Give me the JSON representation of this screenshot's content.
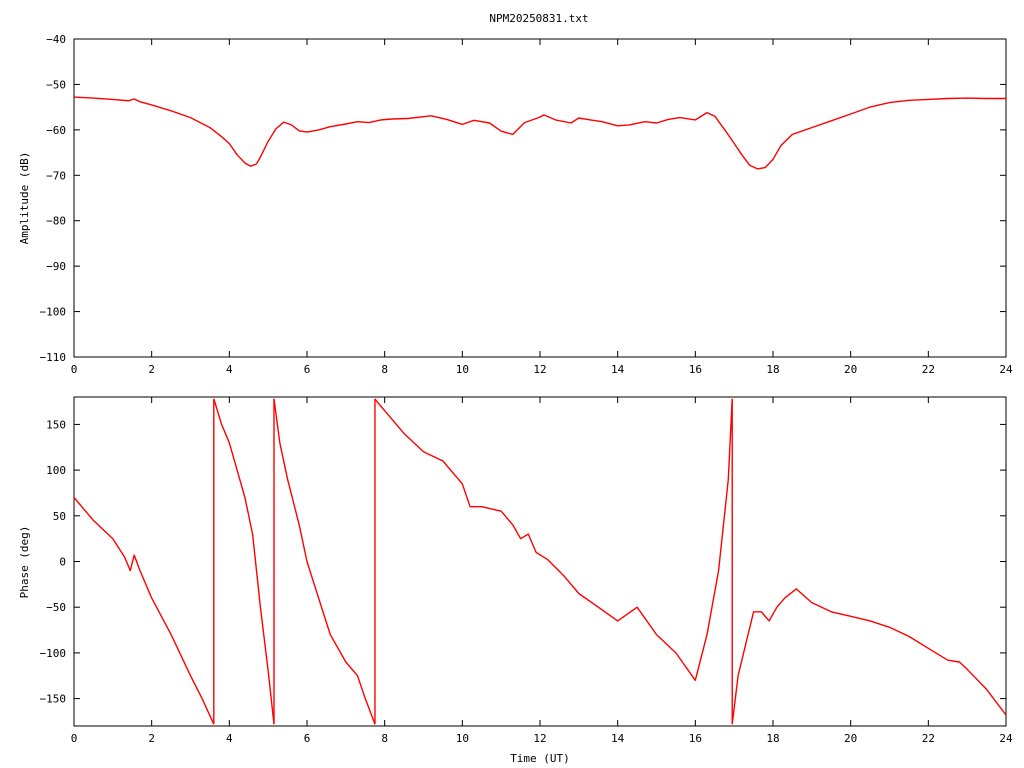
{
  "title": "NPM20250831.txt",
  "colors": {
    "series": "#ff0000",
    "axes": "#000000",
    "background": "#ffffff"
  },
  "chart_data": [
    {
      "type": "line",
      "title": "NPM20250831.txt",
      "xlabel": "",
      "ylabel": "Amplitude (dB)",
      "xlim": [
        0,
        24
      ],
      "ylim": [
        -110,
        -40
      ],
      "xticks": [
        0,
        2,
        4,
        6,
        8,
        10,
        12,
        14,
        16,
        18,
        20,
        22,
        24
      ],
      "yticks": [
        -110,
        -100,
        -90,
        -80,
        -70,
        -60,
        -50,
        -40
      ],
      "grid": false,
      "legend": "none",
      "series": [
        {
          "color": "#ff0000",
          "x": [
            0,
            0.5,
            1.0,
            1.4,
            1.55,
            1.7,
            2.0,
            2.5,
            3.0,
            3.5,
            3.8,
            4.0,
            4.2,
            4.4,
            4.55,
            4.7,
            4.8,
            5.0,
            5.2,
            5.4,
            5.6,
            5.8,
            6.0,
            6.3,
            6.6,
            7.0,
            7.3,
            7.6,
            7.9,
            8.2,
            8.6,
            9.0,
            9.2,
            9.6,
            10.0,
            10.3,
            10.7,
            11.0,
            11.3,
            11.6,
            12.0,
            12.1,
            12.4,
            12.8,
            13.0,
            13.3,
            13.6,
            14.0,
            14.3,
            14.7,
            15.0,
            15.3,
            15.6,
            16.0,
            16.3,
            16.5,
            16.8,
            17.0,
            17.2,
            17.4,
            17.6,
            17.8,
            18.0,
            18.2,
            18.5,
            19.0,
            19.5,
            20.0,
            20.5,
            21.0,
            21.5,
            22.0,
            22.5,
            23.0,
            23.5,
            24.0
          ],
          "values": [
            -52.8,
            -53.0,
            -53.3,
            -53.6,
            -53.2,
            -53.8,
            -54.5,
            -55.8,
            -57.3,
            -59.5,
            -61.5,
            -63.0,
            -65.5,
            -67.3,
            -68.0,
            -67.5,
            -66.0,
            -62.5,
            -59.8,
            -58.3,
            -58.9,
            -60.2,
            -60.5,
            -60.0,
            -59.3,
            -58.7,
            -58.2,
            -58.4,
            -57.8,
            -57.6,
            -57.5,
            -57.1,
            -56.9,
            -57.7,
            -58.8,
            -57.9,
            -58.5,
            -60.3,
            -61.0,
            -58.4,
            -57.2,
            -56.7,
            -57.8,
            -58.5,
            -57.4,
            -57.8,
            -58.2,
            -59.1,
            -58.9,
            -58.2,
            -58.5,
            -57.7,
            -57.3,
            -57.8,
            -56.2,
            -57.0,
            -60.5,
            -63.0,
            -65.5,
            -67.8,
            -68.6,
            -68.3,
            -66.5,
            -63.5,
            -61.0,
            -59.5,
            -58.0,
            -56.5,
            -55.0,
            -54.0,
            -53.5,
            -53.3,
            -53.1,
            -53.0,
            -53.1,
            -53.1
          ]
        }
      ]
    },
    {
      "type": "line",
      "title": "",
      "xlabel": "Time (UT)",
      "ylabel": "Phase (deg)",
      "xlim": [
        0,
        24
      ],
      "ylim": [
        -180,
        180
      ],
      "xticks": [
        0,
        2,
        4,
        6,
        8,
        10,
        12,
        14,
        16,
        18,
        20,
        22,
        24
      ],
      "yticks": [
        -150,
        -100,
        -50,
        0,
        50,
        100,
        150
      ],
      "grid": false,
      "legend": "none",
      "series": [
        {
          "color": "#ff0000",
          "segments": [
            {
              "x": [
                0,
                0.5,
                1.0,
                1.3,
                1.45,
                1.55,
                1.7,
                2.0,
                2.5,
                3.0,
                3.3,
                3.6
              ],
              "values": [
                70,
                45,
                25,
                5,
                -10,
                7,
                -10,
                -40,
                -80,
                -125,
                -150,
                -178
              ]
            },
            {
              "x": [
                3.6,
                3.8,
                4.0,
                4.2,
                4.4,
                4.6,
                4.8,
                5.0,
                5.15
              ],
              "values": [
                178,
                150,
                130,
                100,
                70,
                30,
                -50,
                -120,
                -178
              ]
            },
            {
              "x": [
                5.15,
                5.3,
                5.5,
                5.8,
                6.0,
                6.3,
                6.6,
                7.0,
                7.3,
                7.5,
                7.75
              ],
              "values": [
                178,
                130,
                90,
                40,
                0,
                -40,
                -80,
                -110,
                -125,
                -150,
                -178
              ]
            },
            {
              "x": [
                7.75,
                7.8,
                8.0,
                8.5,
                9.0,
                9.5,
                10.0,
                10.2,
                10.5,
                11.0,
                11.3,
                11.5,
                11.7,
                11.9,
                12.2,
                12.6,
                13.0,
                13.5,
                14.0,
                14.5,
                15.0,
                15.5,
                16.0,
                16.3,
                16.6,
                16.85,
                16.95
              ],
              "values": [
                178,
                175,
                165,
                140,
                120,
                110,
                85,
                60,
                60,
                55,
                40,
                25,
                30,
                10,
                2,
                -15,
                -35,
                -50,
                -65,
                -50,
                -80,
                -100,
                -130,
                -80,
                -10,
                90,
                178
              ]
            },
            {
              "x": [
                16.95,
                17.1,
                17.3,
                17.5,
                17.7,
                17.9,
                18.1,
                18.3,
                18.6,
                19.0,
                19.5,
                20.0,
                20.5,
                21.0,
                21.5,
                22.0,
                22.5,
                22.8,
                23.0,
                23.5,
                24.0
              ],
              "values": [
                -178,
                -125,
                -90,
                -55,
                -55,
                -65,
                -50,
                -40,
                -30,
                -45,
                -55,
                -60,
                -65,
                -72,
                -82,
                -95,
                -108,
                -110,
                -118,
                -140,
                -168
              ]
            }
          ]
        }
      ]
    }
  ]
}
